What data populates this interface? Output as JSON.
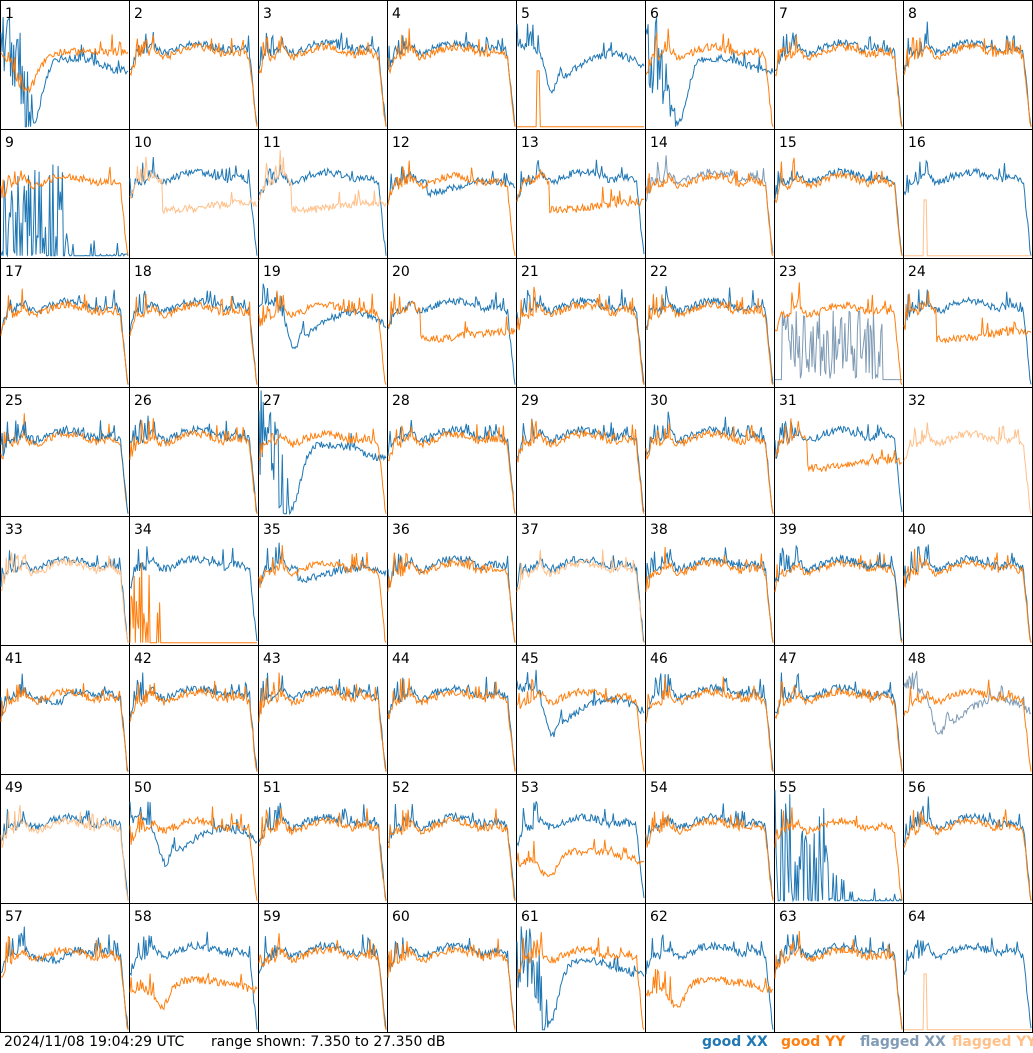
{
  "chart_data": {
    "type": "line",
    "description": "Per-antenna bandpass spectra (XX and YY) on an 8x8 grid",
    "range": [
      7.35,
      27.35
    ],
    "units": "dB",
    "series_colors": {
      "good_xx": "#1f77b4",
      "good_yy": "#ff7f0e",
      "flagged_xx": "#7f9bb5",
      "flagged_yy": "#ffc08a"
    },
    "panels": [
      {
        "id": "1",
        "shape": "dipRecover",
        "xx": "good",
        "yy": "good",
        "yyDrop": true
      },
      {
        "id": "2",
        "shape": "normal",
        "xx": "good",
        "yy": "good"
      },
      {
        "id": "3",
        "shape": "normal",
        "xx": "good",
        "yy": "good"
      },
      {
        "id": "4",
        "shape": "normal",
        "xx": "good",
        "yy": "good"
      },
      {
        "id": "5",
        "shape": "xxDipYYdead",
        "xx": "good",
        "yy": "good"
      },
      {
        "id": "6",
        "shape": "xxBigDip",
        "xx": "good",
        "yy": "good"
      },
      {
        "id": "7",
        "shape": "normal",
        "xx": "good",
        "yy": "good"
      },
      {
        "id": "8",
        "shape": "normal",
        "xx": "good",
        "yy": "good"
      },
      {
        "id": "9",
        "shape": "xxSpiky",
        "xx": "good",
        "yy": "good"
      },
      {
        "id": "10",
        "shape": "yyLow",
        "xx": "good",
        "yy": "flagged"
      },
      {
        "id": "11",
        "shape": "yyLow",
        "xx": "good",
        "yy": "flagged"
      },
      {
        "id": "12",
        "shape": "xxLow",
        "xx": "good",
        "yy": "good"
      },
      {
        "id": "13",
        "shape": "yyLow",
        "xx": "good",
        "yy": "good"
      },
      {
        "id": "14",
        "shape": "normal",
        "xx": "flagged",
        "yy": "good"
      },
      {
        "id": "15",
        "shape": "normal",
        "xx": "good",
        "yy": "good"
      },
      {
        "id": "16",
        "shape": "yyDead",
        "xx": "good",
        "yy": "flagged"
      },
      {
        "id": "17",
        "shape": "normal",
        "xx": "good",
        "yy": "good"
      },
      {
        "id": "18",
        "shape": "normal",
        "xx": "good",
        "yy": "good"
      },
      {
        "id": "19",
        "shape": "xxDipRise",
        "xx": "good",
        "yy": "good"
      },
      {
        "id": "20",
        "shape": "yyLow",
        "xx": "good",
        "yy": "good"
      },
      {
        "id": "21",
        "shape": "normal",
        "xx": "good",
        "yy": "good"
      },
      {
        "id": "22",
        "shape": "normal",
        "xx": "good",
        "yy": "good"
      },
      {
        "id": "23",
        "shape": "xxNoisy",
        "xx": "flagged",
        "yy": "good"
      },
      {
        "id": "24",
        "shape": "yyDip",
        "xx": "good",
        "yy": "good"
      },
      {
        "id": "25",
        "shape": "yyOnly",
        "xx": "good",
        "yy": "good"
      },
      {
        "id": "26",
        "shape": "normal",
        "xx": "good",
        "yy": "good"
      },
      {
        "id": "27",
        "shape": "xxBigDip",
        "xx": "good",
        "yy": "good"
      },
      {
        "id": "28",
        "shape": "normal",
        "xx": "good",
        "yy": "good"
      },
      {
        "id": "29",
        "shape": "normal",
        "xx": "good",
        "yy": "good"
      },
      {
        "id": "30",
        "shape": "normal",
        "xx": "good",
        "yy": "good"
      },
      {
        "id": "31",
        "shape": "yyLow",
        "xx": "good",
        "yy": "good"
      },
      {
        "id": "32",
        "shape": "yyFlagOnly",
        "xx": "good",
        "yy": "flagged"
      },
      {
        "id": "33",
        "shape": "normal",
        "xx": "good",
        "yy": "flagged"
      },
      {
        "id": "34",
        "shape": "yySpiky",
        "xx": "good",
        "yy": "good"
      },
      {
        "id": "35",
        "shape": "xxLow",
        "xx": "good",
        "yy": "good"
      },
      {
        "id": "36",
        "shape": "normal",
        "xx": "good",
        "yy": "good"
      },
      {
        "id": "37",
        "shape": "normal",
        "xx": "good",
        "yy": "flagged"
      },
      {
        "id": "38",
        "shape": "normal",
        "xx": "good",
        "yy": "good"
      },
      {
        "id": "39",
        "shape": "yyOnlySpike",
        "xx": "good",
        "yy": "good"
      },
      {
        "id": "40",
        "shape": "normal",
        "xx": "good",
        "yy": "good"
      },
      {
        "id": "41",
        "shape": "xxSag",
        "xx": "good",
        "yy": "good"
      },
      {
        "id": "42",
        "shape": "normal",
        "xx": "good",
        "yy": "good"
      },
      {
        "id": "43",
        "shape": "normal",
        "xx": "good",
        "yy": "good"
      },
      {
        "id": "44",
        "shape": "normal",
        "xx": "good",
        "yy": "good"
      },
      {
        "id": "45",
        "shape": "xxDipRise",
        "xx": "good",
        "yy": "good"
      },
      {
        "id": "46",
        "shape": "normal",
        "xx": "good",
        "yy": "good"
      },
      {
        "id": "47",
        "shape": "normal",
        "xx": "good",
        "yy": "good"
      },
      {
        "id": "48",
        "shape": "xxDipRise",
        "xx": "flagged",
        "yy": "good"
      },
      {
        "id": "49",
        "shape": "normal",
        "xx": "good",
        "yy": "flagged"
      },
      {
        "id": "50",
        "shape": "xxDipRise",
        "xx": "good",
        "yy": "good"
      },
      {
        "id": "51",
        "shape": "normal",
        "xx": "good",
        "yy": "good"
      },
      {
        "id": "52",
        "shape": "normal",
        "xx": "good",
        "yy": "good"
      },
      {
        "id": "53",
        "shape": "yyLowDip",
        "xx": "good",
        "yy": "good"
      },
      {
        "id": "54",
        "shape": "normal",
        "xx": "good",
        "yy": "good"
      },
      {
        "id": "55",
        "shape": "xxSpiky",
        "xx": "good",
        "yy": "good"
      },
      {
        "id": "56",
        "shape": "normal",
        "xx": "good",
        "yy": "good"
      },
      {
        "id": "57",
        "shape": "xxSag",
        "xx": "good",
        "yy": "good"
      },
      {
        "id": "58",
        "shape": "yyLowDip",
        "xx": "good",
        "yy": "good"
      },
      {
        "id": "59",
        "shape": "normal",
        "xx": "good",
        "yy": "good"
      },
      {
        "id": "60",
        "shape": "normal",
        "xx": "good",
        "yy": "good"
      },
      {
        "id": "61",
        "shape": "xxBigDip",
        "xx": "good",
        "yy": "good"
      },
      {
        "id": "62",
        "shape": "yyLowDip",
        "xx": "good",
        "yy": "good"
      },
      {
        "id": "63",
        "shape": "normal",
        "xx": "good",
        "yy": "good"
      },
      {
        "id": "64",
        "shape": "yyDead",
        "xx": "good",
        "yy": "flagged"
      }
    ]
  },
  "footer": {
    "timestamp": "2024/11/08 19:04:29 UTC",
    "range_text": "range shown: 7.350 to 27.350 dB"
  },
  "legend": [
    {
      "label": "good XX",
      "color": "#1f77b4"
    },
    {
      "label": "good YY",
      "color": "#ff7f0e"
    },
    {
      "label": "flagged XX",
      "color": "#7f9bb5"
    },
    {
      "label": "flagged YY",
      "color": "#ffc08a"
    }
  ]
}
